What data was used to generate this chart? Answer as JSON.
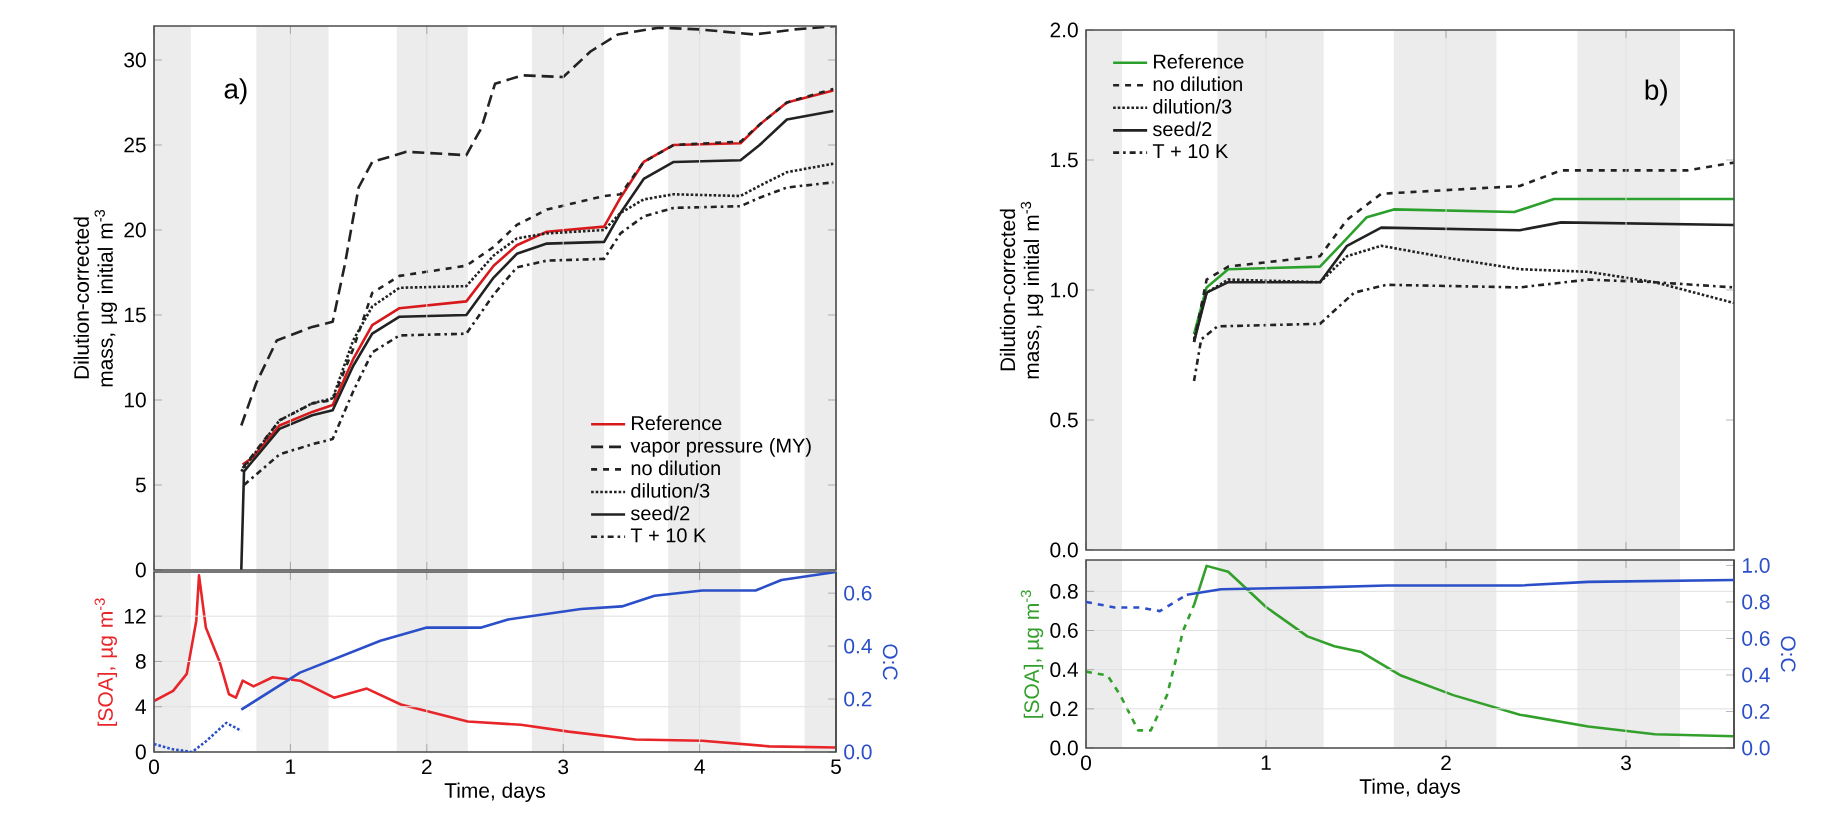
{
  "chart_data": [
    {
      "type": "line",
      "ylabel": "Dilution-corrected mass, µg initial m$^{-3}$",
      "annotations": [
        "a)"
      ],
      "xlim": [
        0,
        5
      ],
      "ylim": [
        0,
        32
      ],
      "xticks": [
        0,
        1,
        2,
        3,
        4,
        5
      ],
      "yticks": [
        0,
        5,
        10,
        15,
        20,
        25,
        30
      ],
      "tick_labels": "y",
      "grid": "x",
      "legend": "bottom right",
      "bands": [
        {
          "axis": "x",
          "from": 0,
          "to": 0.27,
          "color": "#ececec"
        },
        {
          "axis": "x",
          "from": 0.75,
          "to": 1.28,
          "color": "#ececec"
        },
        {
          "axis": "x",
          "from": 1.78,
          "to": 2.3,
          "color": "#ececec"
        },
        {
          "axis": "x",
          "from": 2.77,
          "to": 3.3,
          "color": "#ececec"
        },
        {
          "axis": "x",
          "from": 3.77,
          "to": 4.3,
          "color": "#ececec"
        },
        {
          "axis": "x",
          "from": 4.77,
          "to": 5,
          "color": "#ececec"
        }
      ],
      "series": [
        {
          "name": "Reference",
          "color": "#d7191c",
          "line_style": "solid",
          "x": [
            0.65,
            0.72,
            0.92,
            1.16,
            1.31,
            1.46,
            1.6,
            1.8,
            2.29,
            2.49,
            2.66,
            2.88,
            3.3,
            3.42,
            3.59,
            3.81,
            4.3,
            4.44,
            4.64,
            4.98
          ],
          "values": [
            6.2,
            6.6,
            8.5,
            9.3,
            9.7,
            12.4,
            14.4,
            15.4,
            15.8,
            17.9,
            19.1,
            19.9,
            20.2,
            21.9,
            24.0,
            25.0,
            25.1,
            26.2,
            27.5,
            28.2
          ]
        },
        {
          "name": "vapor pressure (MY)",
          "color": "#222222",
          "line_style": "longdashed",
          "x": [
            0.64,
            0.75,
            0.9,
            1.16,
            1.31,
            1.4,
            1.5,
            1.6,
            1.85,
            2.29,
            2.4,
            2.5,
            2.7,
            3.0,
            3.2,
            3.4,
            3.7,
            4.0,
            4.4,
            4.7,
            5.0
          ],
          "values": [
            8.5,
            11.0,
            13.5,
            14.3,
            14.6,
            18.0,
            22.5,
            24.0,
            24.6,
            24.4,
            26.0,
            28.6,
            29.1,
            29.0,
            30.5,
            31.5,
            31.9,
            31.8,
            31.5,
            31.8,
            32.0
          ]
        },
        {
          "name": "no dilution",
          "color": "#222222",
          "line_style": "dashed",
          "x": [
            0.65,
            0.92,
            1.16,
            1.31,
            1.46,
            1.6,
            1.8,
            2.29,
            2.49,
            2.66,
            2.88,
            3.3,
            3.42,
            3.59,
            3.81,
            4.3,
            4.44,
            4.64,
            4.98
          ],
          "values": [
            6.0,
            8.8,
            9.8,
            10.0,
            13.0,
            16.3,
            17.3,
            17.9,
            19.0,
            20.3,
            21.2,
            22.0,
            22.1,
            24.0,
            25.0,
            25.2,
            26.2,
            27.5,
            28.3
          ]
        },
        {
          "name": "dilution/3",
          "color": "#222222",
          "line_style": "dotted",
          "x": [
            0.64,
            0.92,
            1.16,
            1.31,
            1.46,
            1.6,
            1.8,
            2.29,
            2.49,
            2.66,
            2.88,
            3.3,
            3.42,
            3.59,
            3.81,
            4.3,
            4.44,
            4.64,
            4.98
          ],
          "values": [
            5.8,
            8.8,
            9.8,
            10.1,
            13.5,
            15.5,
            16.6,
            16.7,
            18.5,
            19.5,
            19.8,
            20.0,
            21.0,
            21.8,
            22.1,
            22.0,
            22.6,
            23.4,
            23.9
          ]
        },
        {
          "name": "seed/2",
          "color": "#222222",
          "line_style": "solid",
          "x": [
            0.64,
            0.66,
            0.92,
            1.16,
            1.31,
            1.46,
            1.6,
            1.8,
            2.29,
            2.49,
            2.66,
            2.88,
            3.3,
            3.42,
            3.59,
            3.81,
            4.3,
            4.44,
            4.64,
            4.98
          ],
          "values": [
            0,
            5.8,
            8.3,
            9.1,
            9.4,
            12.0,
            13.9,
            14.9,
            15.0,
            17.2,
            18.6,
            19.2,
            19.3,
            21.0,
            23.0,
            24.0,
            24.1,
            25.0,
            26.5,
            27.0
          ]
        },
        {
          "name": "T + 10 K",
          "color": "#222222",
          "line_style": "dashdot",
          "x": [
            0.66,
            0.92,
            1.16,
            1.31,
            1.46,
            1.6,
            1.8,
            2.29,
            2.49,
            2.66,
            2.88,
            3.3,
            3.42,
            3.59,
            3.81,
            4.3,
            4.44,
            4.64,
            4.98
          ],
          "values": [
            5.0,
            6.8,
            7.4,
            7.7,
            10.5,
            12.8,
            13.8,
            13.9,
            16.2,
            17.8,
            18.2,
            18.3,
            19.8,
            20.8,
            21.3,
            21.4,
            21.9,
            22.5,
            22.8
          ]
        }
      ]
    },
    {
      "type": "line",
      "xlabel": "Time, days",
      "ylabel": "[SOA], µg m$^{-3}$",
      "y2label": "O:C",
      "xlim": [
        0,
        5
      ],
      "ylim": [
        0,
        15.9
      ],
      "y2lim": [
        0,
        0.68
      ],
      "xticks": [
        0,
        1,
        2,
        3,
        4,
        5
      ],
      "yticks": [
        0,
        4,
        8,
        12
      ],
      "y2ticks": [
        {
          "value": 0,
          "label": "0.0"
        },
        {
          "value": 0.2,
          "label": "0.2"
        },
        {
          "value": 0.4,
          "label": "0.4"
        },
        {
          "value": 0.6,
          "label": "0.6"
        }
      ],
      "grid": true,
      "bands": [
        {
          "axis": "x",
          "from": 0,
          "to": 0.27,
          "color": "#ececec"
        },
        {
          "axis": "x",
          "from": 0.75,
          "to": 1.28,
          "color": "#ececec"
        },
        {
          "axis": "x",
          "from": 1.78,
          "to": 2.3,
          "color": "#ececec"
        },
        {
          "axis": "x",
          "from": 2.77,
          "to": 3.3,
          "color": "#ececec"
        },
        {
          "axis": "x",
          "from": 3.77,
          "to": 4.3,
          "color": "#ececec"
        },
        {
          "axis": "x",
          "from": 4.77,
          "to": 5,
          "color": "#ececec"
        }
      ],
      "series": [
        {
          "color": "#e8262a",
          "line_style": "solid",
          "x": [
            0,
            0.14,
            0.24,
            0.31,
            0.33,
            0.38,
            0.48,
            0.55,
            0.6,
            0.65,
            0.73,
            0.87,
            1.07,
            1.32,
            1.56,
            1.81,
            2.3,
            2.69,
            3.04,
            3.53,
            4.02,
            4.51,
            5.0
          ],
          "values": [
            4.5,
            5.4,
            6.9,
            11.6,
            15.6,
            11.0,
            8.0,
            5.1,
            4.8,
            6.3,
            5.8,
            6.6,
            6.3,
            4.8,
            5.6,
            4.2,
            2.7,
            2.4,
            1.8,
            1.1,
            1.0,
            0.5,
            0.4
          ]
        },
        {
          "color": "#2b4fc8",
          "line_style": "dotted",
          "axis": "y2",
          "x": [
            0,
            0.14,
            0.28,
            0.38,
            0.53,
            0.64
          ],
          "values": [
            0.03,
            0.01,
            0.0,
            0.04,
            0.11,
            0.08
          ]
        },
        {
          "color": "#2b4fc8",
          "line_style": "solid",
          "axis": "y2",
          "x": [
            0.64,
            1.07,
            1.66,
            2.0,
            2.4,
            2.59,
            3.13,
            3.43,
            3.67,
            4.02,
            4.41,
            4.6,
            5.0
          ],
          "values": [
            0.16,
            0.3,
            0.42,
            0.47,
            0.47,
            0.5,
            0.54,
            0.55,
            0.59,
            0.61,
            0.61,
            0.65,
            0.68
          ]
        }
      ]
    },
    {
      "type": "line",
      "ylabel": "Dilution-corrected mass, µg initial m$^{-3}$",
      "annotations": [
        "b)"
      ],
      "xlim": [
        0,
        3.6
      ],
      "ylim": [
        0,
        2
      ],
      "xticks": [
        0,
        1,
        2,
        3
      ],
      "yticks": [
        {
          "value": 0,
          "label": "0.0"
        },
        {
          "value": 0.5,
          "label": "0.5"
        },
        {
          "value": 1,
          "label": "1.0"
        },
        {
          "value": 1.5,
          "label": "1.5"
        },
        {
          "value": 2,
          "label": "2.0"
        }
      ],
      "tick_labels": "y",
      "grid": "x",
      "legend": "top left",
      "bands": [
        {
          "axis": "x",
          "from": 0,
          "to": 0.2,
          "color": "#ececec"
        },
        {
          "axis": "x",
          "from": 0.73,
          "to": 1.32,
          "color": "#ececec"
        },
        {
          "axis": "x",
          "from": 1.71,
          "to": 2.28,
          "color": "#ececec"
        },
        {
          "axis": "x",
          "from": 2.73,
          "to": 3.3,
          "color": "#ececec"
        }
      ],
      "series": [
        {
          "name": "Reference",
          "color": "#2ca02c",
          "line_style": "solid",
          "x": [
            0.6,
            0.67,
            0.79,
            1.3,
            1.41,
            1.56,
            1.71,
            2.38,
            2.6,
            3.16,
            3.6
          ],
          "values": [
            0.83,
            1.01,
            1.08,
            1.09,
            1.17,
            1.28,
            1.31,
            1.3,
            1.35,
            1.35,
            1.35
          ]
        },
        {
          "name": "no dilution",
          "color": "#222222",
          "line_style": "dashed",
          "x": [
            0.6,
            0.67,
            0.79,
            1.3,
            1.45,
            1.64,
            2.41,
            2.64,
            3.34,
            3.6
          ],
          "values": [
            0.8,
            1.04,
            1.09,
            1.13,
            1.27,
            1.37,
            1.4,
            1.46,
            1.46,
            1.49
          ]
        },
        {
          "name": "dilution/3",
          "color": "#222222",
          "line_style": "dotted",
          "x": [
            0.6,
            0.67,
            0.79,
            1.3,
            1.45,
            1.64,
            2.04,
            2.41,
            2.79,
            3.16,
            3.6
          ],
          "values": [
            0.81,
            0.99,
            1.04,
            1.03,
            1.13,
            1.17,
            1.12,
            1.08,
            1.07,
            1.03,
            0.95
          ]
        },
        {
          "name": "seed/2",
          "color": "#222222",
          "line_style": "solid",
          "x": [
            0.6,
            0.67,
            0.79,
            1.3,
            1.45,
            1.64,
            2.41,
            2.64,
            3.6
          ],
          "values": [
            0.8,
            0.99,
            1.03,
            1.03,
            1.17,
            1.24,
            1.23,
            1.26,
            1.25
          ]
        },
        {
          "name": "T + 10 K",
          "color": "#222222",
          "line_style": "dashdot",
          "x": [
            0.6,
            0.64,
            0.73,
            1.3,
            1.49,
            1.67,
            2.41,
            2.79,
            3.16,
            3.6
          ],
          "values": [
            0.65,
            0.81,
            0.86,
            0.87,
            0.99,
            1.02,
            1.01,
            1.04,
            1.03,
            1.01
          ]
        }
      ]
    },
    {
      "type": "line",
      "xlabel": "Time, days",
      "ylabel": "[SOA], µg m$^{-3}$",
      "y2label": "O:C",
      "xlim": [
        0,
        3.6
      ],
      "ylim": [
        0,
        0.96
      ],
      "y2lim": [
        0,
        1.03
      ],
      "xticks": [
        0,
        1,
        2,
        3
      ],
      "yticks": [
        {
          "value": 0,
          "label": "0.0"
        },
        {
          "value": 0.2,
          "label": "0.2"
        },
        {
          "value": 0.4,
          "label": "0.4"
        },
        {
          "value": 0.6,
          "label": "0.6"
        },
        {
          "value": 0.8,
          "label": "0.8"
        }
      ],
      "y2ticks": [
        {
          "value": 0,
          "label": "0.0"
        },
        {
          "value": 0.2,
          "label": "0.2"
        },
        {
          "value": 0.4,
          "label": "0.4"
        },
        {
          "value": 0.6,
          "label": "0.6"
        },
        {
          "value": 0.8,
          "label": "0.8"
        },
        {
          "value": 1,
          "label": "1.0"
        }
      ],
      "grid": true,
      "bands": [
        {
          "axis": "x",
          "from": 0,
          "to": 0.2,
          "color": "#ececec"
        },
        {
          "axis": "x",
          "from": 0.73,
          "to": 1.32,
          "color": "#ececec"
        },
        {
          "axis": "x",
          "from": 1.71,
          "to": 2.28,
          "color": "#ececec"
        },
        {
          "axis": "x",
          "from": 2.73,
          "to": 3.3,
          "color": "#ececec"
        }
      ],
      "series": [
        {
          "color": "#33a02c",
          "line_style": "dashed",
          "x": [
            0,
            0.12,
            0.19,
            0.29,
            0.36,
            0.45,
            0.54,
            0.6
          ],
          "values": [
            0.39,
            0.37,
            0.27,
            0.09,
            0.09,
            0.27,
            0.6,
            0.73
          ]
        },
        {
          "color": "#33a02c",
          "line_style": "solid",
          "x": [
            0.6,
            0.67,
            0.79,
            1.0,
            1.23,
            1.38,
            1.53,
            1.75,
            2.04,
            2.41,
            2.79,
            3.16,
            3.6
          ],
          "values": [
            0.73,
            0.93,
            0.9,
            0.72,
            0.57,
            0.52,
            0.49,
            0.37,
            0.27,
            0.17,
            0.11,
            0.07,
            0.06
          ]
        },
        {
          "color": "#2b4fc8",
          "line_style": "dashed",
          "axis": "y2",
          "x": [
            0,
            0.16,
            0.3,
            0.41,
            0.56
          ],
          "values": [
            0.8,
            0.77,
            0.77,
            0.75,
            0.84
          ]
        },
        {
          "color": "#2b4fc8",
          "line_style": "solid",
          "axis": "y2",
          "x": [
            0.56,
            0.75,
            1.3,
            1.67,
            2.41,
            2.79,
            3.6
          ],
          "values": [
            0.84,
            0.87,
            0.88,
            0.89,
            0.89,
            0.91,
            0.92
          ]
        }
      ]
    }
  ]
}
